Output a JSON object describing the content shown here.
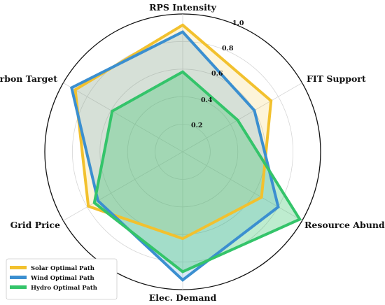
{
  "chart_data": {
    "type": "radar",
    "axes": [
      "RPS Intensity",
      "FIT Support",
      "Resource Abundance",
      "Elec. Demand",
      "Grid Price",
      "Carbon Target"
    ],
    "rlim": [
      0,
      1.0
    ],
    "ticks": [
      "0.2",
      "0.4",
      "0.6",
      "0.8",
      "1.0"
    ],
    "tick_values": [
      0.2,
      0.4,
      0.6,
      0.8,
      1.0
    ],
    "grid": true,
    "legend_position": "bottom-left",
    "series": [
      {
        "name": "Solar Optimal Path",
        "color": "#f2c12e",
        "fill_opacity": 0.18,
        "values": [
          0.92,
          0.74,
          0.66,
          0.63,
          0.79,
          0.9
        ]
      },
      {
        "name": "Wind Optimal Path",
        "color": "#3b8fd0",
        "fill_opacity": 0.2,
        "values": [
          0.87,
          0.6,
          0.8,
          0.93,
          0.71,
          0.93
        ]
      },
      {
        "name": "Hydro Optimal Path",
        "color": "#34c46a",
        "fill_opacity": 0.32,
        "values": [
          0.58,
          0.46,
          0.98,
          0.87,
          0.74,
          0.59
        ]
      }
    ]
  }
}
